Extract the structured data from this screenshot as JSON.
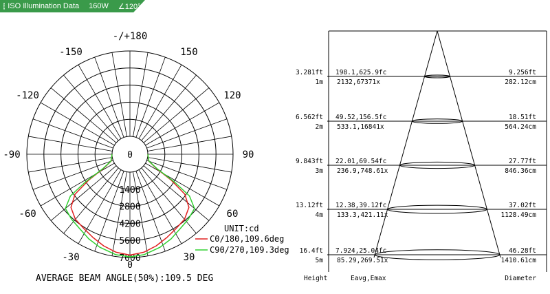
{
  "header": {
    "title": "ISO Illumination Data",
    "power": "160W",
    "angle": "∠120°"
  },
  "chart_data": [
    {
      "type": "polar",
      "angle_labels": [
        {
          "deg": 180,
          "text": "-/+180"
        },
        {
          "deg": 150,
          "text": "150"
        },
        {
          "deg": -150,
          "text": "-150"
        },
        {
          "deg": 120,
          "text": "120"
        },
        {
          "deg": -120,
          "text": "-120"
        },
        {
          "deg": 90,
          "text": "90"
        },
        {
          "deg": -90,
          "text": "-90"
        },
        {
          "deg": 60,
          "text": "60"
        },
        {
          "deg": -60,
          "text": "-60"
        },
        {
          "deg": 30,
          "text": "30"
        },
        {
          "deg": -30,
          "text": "-30"
        },
        {
          "deg": 0,
          "text": "0"
        }
      ],
      "radial_labels": [
        "0",
        "1400",
        "2800",
        "4200",
        "5600",
        "7000"
      ],
      "rmax": 7000,
      "unit": "UNIT:cd",
      "series": [
        {
          "name": "C0/180,109.6deg",
          "color": "#e02020",
          "points": [
            [
              -90,
              0
            ],
            [
              -80,
              60
            ],
            [
              -70,
              180
            ],
            [
              -62,
              950
            ],
            [
              -58,
              2500
            ],
            [
              -54,
              4100
            ],
            [
              -48,
              5050
            ],
            [
              -40,
              5500
            ],
            [
              -32,
              5700
            ],
            [
              -24,
              6000
            ],
            [
              -16,
              6350
            ],
            [
              -8,
              6650
            ],
            [
              0,
              6800
            ],
            [
              8,
              6650
            ],
            [
              16,
              6350
            ],
            [
              24,
              6000
            ],
            [
              32,
              5700
            ],
            [
              40,
              5500
            ],
            [
              48,
              5050
            ],
            [
              54,
              4100
            ],
            [
              58,
              2500
            ],
            [
              62,
              950
            ],
            [
              70,
              180
            ],
            [
              80,
              60
            ],
            [
              90,
              0
            ]
          ]
        },
        {
          "name": "C90/270,109.3deg",
          "color": "#30d030",
          "points": [
            [
              -90,
              0
            ],
            [
              -80,
              60
            ],
            [
              -70,
              200
            ],
            [
              -62,
              1050
            ],
            [
              -58,
              2900
            ],
            [
              -55,
              4500
            ],
            [
              -50,
              5450
            ],
            [
              -42,
              5700
            ],
            [
              -34,
              5900
            ],
            [
              -26,
              6250
            ],
            [
              -18,
              6550
            ],
            [
              -8,
              6850
            ],
            [
              0,
              6950
            ],
            [
              8,
              6850
            ],
            [
              18,
              6550
            ],
            [
              26,
              6250
            ],
            [
              34,
              5900
            ],
            [
              42,
              5700
            ],
            [
              50,
              5450
            ],
            [
              55,
              4500
            ],
            [
              58,
              2900
            ],
            [
              62,
              1050
            ],
            [
              70,
              200
            ],
            [
              80,
              60
            ],
            [
              90,
              0
            ]
          ]
        }
      ],
      "caption": "AVERAGE BEAM ANGLE(50%):109.5 DEG"
    },
    {
      "type": "table",
      "rows": [
        {
          "height_ft": "3.281ft",
          "height_m": "1m",
          "e_fc": "198.1,625.9fc",
          "e_lx": "2132,67371x",
          "d_ft": "9.256ft",
          "d_cm": "282.12cm"
        },
        {
          "height_ft": "6.562ft",
          "height_m": "2m",
          "e_fc": "49.52,156.5fc",
          "e_lx": "533.1,16841x",
          "d_ft": "18.51ft",
          "d_cm": "564.24cm"
        },
        {
          "height_ft": "9.843ft",
          "height_m": "3m",
          "e_fc": "22.01,69.54fc",
          "e_lx": "236.9,748.61x",
          "d_ft": "27.77ft",
          "d_cm": "846.36cm"
        },
        {
          "height_ft": "13.12ft",
          "height_m": "4m",
          "e_fc": "12.38,39.12fc",
          "e_lx": "133.3,421.11x",
          "d_ft": "37.02ft",
          "d_cm": "1128.49cm"
        },
        {
          "height_ft": "16.4ft",
          "height_m": "5m",
          "e_fc": "7.924,25.04fc",
          "e_lx": "85.29,269.51x",
          "d_ft": "46.28ft",
          "d_cm": "1410.61cm"
        }
      ],
      "footer": {
        "height": "Height",
        "eavg": "Eavg,Emax",
        "diameter": "Diameter"
      }
    }
  ]
}
